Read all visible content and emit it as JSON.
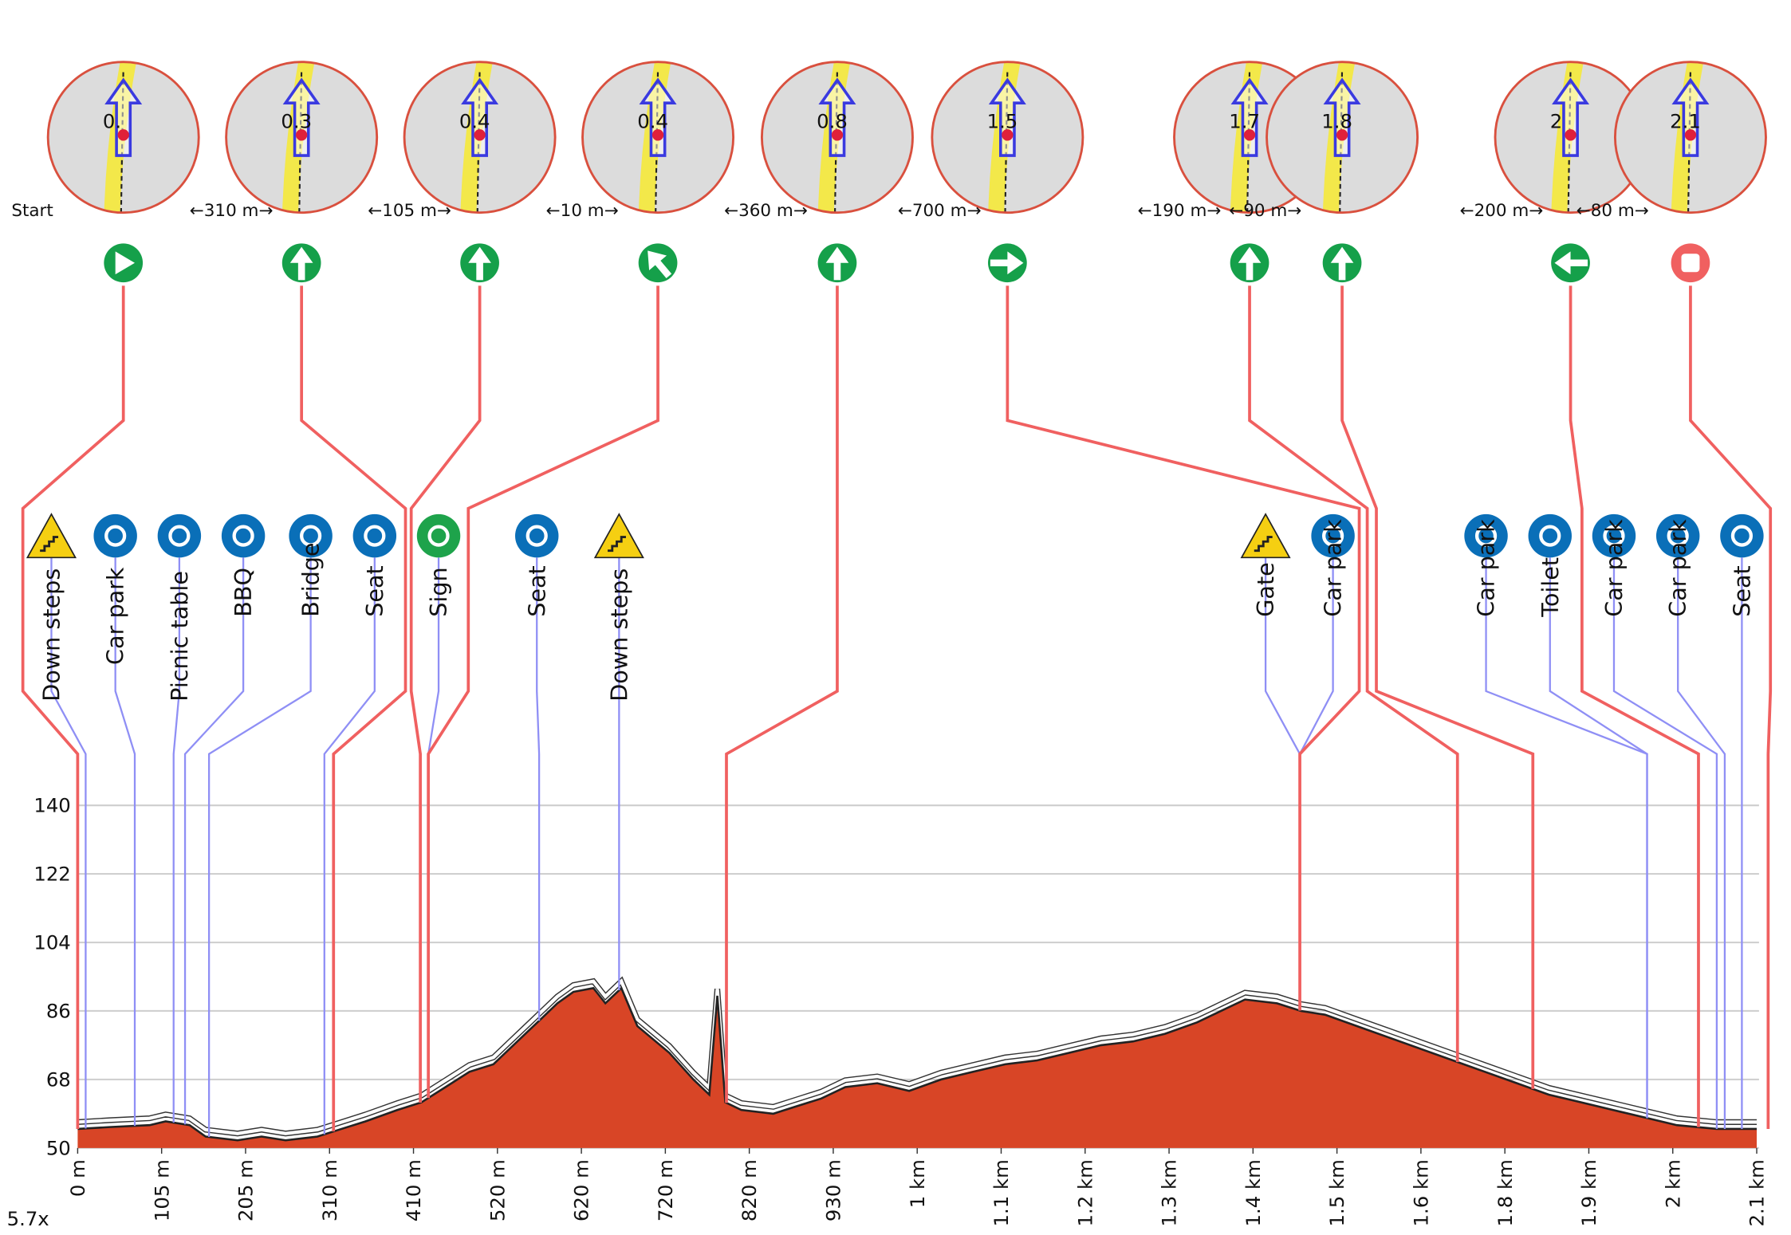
{
  "waypoints": [
    {
      "label": "0.",
      "distance": "Start"
    },
    {
      "label": "0.3",
      "distance": "←310 m→"
    },
    {
      "label": "0.4",
      "distance": "←105 m→"
    },
    {
      "label": "0.4",
      "distance": "←10 m→"
    },
    {
      "label": "0.8",
      "distance": "←360 m→"
    },
    {
      "label": "1.5",
      "distance": "←700 m→"
    },
    {
      "label": "1.7",
      "distance": "←190 m→"
    },
    {
      "label": "1.8",
      "distance": "←90 m→"
    },
    {
      "label": "2",
      "distance": "←200 m→"
    },
    {
      "label": "2.1",
      "distance": "←80 m→"
    }
  ],
  "pois": [
    "Down steps",
    "Car park",
    "Picnic table",
    "BBQ",
    "Bridge",
    "Seat",
    "Sign",
    "Seat",
    "Down steps",
    "Gate",
    "Car park",
    "Car park",
    "Toilet",
    "Car park",
    "Car park",
    "Seat"
  ],
  "zoom": "5.7x",
  "chart_data": {
    "type": "area",
    "color": "#d84526",
    "x": [
      0,
      40,
      90,
      110,
      140,
      160,
      200,
      230,
      260,
      300,
      330,
      360,
      400,
      430,
      460,
      490,
      520,
      540,
      560,
      580,
      600,
      620,
      645,
      660,
      680,
      700,
      740,
      770,
      790,
      800,
      810,
      830,
      870,
      900,
      930,
      960,
      1000,
      1040,
      1080,
      1120,
      1160,
      1200,
      1240,
      1280,
      1320,
      1360,
      1400,
      1430,
      1460,
      1500,
      1530,
      1560,
      1600,
      1640,
      1680,
      1720,
      1760,
      1800,
      1840,
      1880,
      1920,
      1960,
      2000,
      2050,
      2100
    ],
    "values": [
      55,
      55.5,
      56,
      57,
      56,
      53,
      52,
      53,
      52,
      53,
      55,
      57,
      60,
      62,
      66,
      70,
      72,
      76,
      80,
      84,
      88,
      91,
      92,
      88,
      92,
      82,
      75,
      68,
      64,
      90,
      62,
      60,
      59,
      61,
      63,
      66,
      67,
      65,
      68,
      70,
      72,
      73,
      75,
      77,
      78,
      80,
      83,
      86,
      89,
      88,
      86,
      85,
      82,
      79,
      76,
      73,
      70,
      67,
      64,
      62,
      60,
      58,
      56,
      55,
      55
    ],
    "xlim": [
      0,
      2100
    ],
    "ylim": [
      50,
      150
    ],
    "yticks": [
      50,
      68,
      86,
      104,
      122,
      140
    ],
    "xticks": [
      {
        "value": 0,
        "label": "0 m"
      },
      {
        "value": 105,
        "label": "105 m"
      },
      {
        "value": 210,
        "label": "205 m"
      },
      {
        "value": 315,
        "label": "310 m"
      },
      {
        "value": 420,
        "label": "410 m"
      },
      {
        "value": 525,
        "label": "520 m"
      },
      {
        "value": 630,
        "label": "620 m"
      },
      {
        "value": 735,
        "label": "720 m"
      },
      {
        "value": 840,
        "label": "820 m"
      },
      {
        "value": 945,
        "label": "930 m"
      },
      {
        "value": 1050,
        "label": "1 km"
      },
      {
        "value": 1155,
        "label": "1.1 km"
      },
      {
        "value": 1260,
        "label": "1.2 km"
      },
      {
        "value": 1365,
        "label": "1.3 km"
      },
      {
        "value": 1470,
        "label": "1.4 km"
      },
      {
        "value": 1575,
        "label": "1.5 km"
      },
      {
        "value": 1680,
        "label": "1.6 km"
      },
      {
        "value": 1785,
        "label": "1.8 km"
      },
      {
        "value": 1890,
        "label": "1.9 km"
      },
      {
        "value": 1995,
        "label": "2 km"
      },
      {
        "value": 2100,
        "label": "2.1 km"
      }
    ],
    "grid": true
  }
}
